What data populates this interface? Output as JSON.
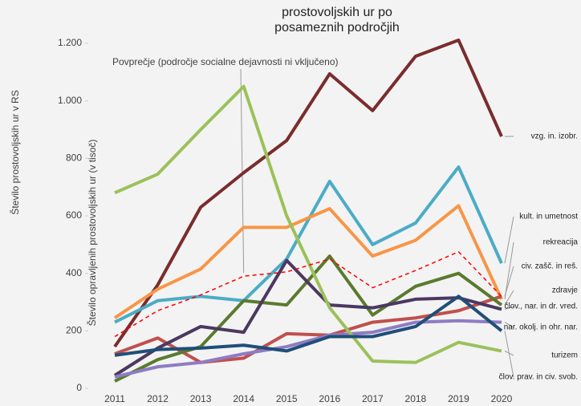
{
  "chart_data": {
    "type": "line",
    "title_lines": [
      "prostovoljskih ur po",
      "posameznih področjih"
    ],
    "outer_ylabel": "Število prostovoljskih ur v RS",
    "ylabel": "Število opravljenih prostovoljskih ur (v tisoč)",
    "annotation": "Povprečje (področje socialne dejavnosti ni vključeno)",
    "categories": [
      "2011",
      "2012",
      "2013",
      "2014",
      "2015",
      "2016",
      "2017",
      "2018",
      "2019",
      "2020"
    ],
    "ylim": [
      0,
      1200
    ],
    "yticks": [
      0,
      200,
      400,
      600,
      800,
      {
        "value": 1000,
        "label": "1.000"
      },
      {
        "value": 1200,
        "label": "1.200"
      }
    ],
    "series": [
      {
        "name": "vzg. in. izobr.",
        "color": "#7b2c2c",
        "values": [
          145,
          360,
          630,
          750,
          862,
          1094,
          966,
          1155,
          1211,
          876
        ]
      },
      {
        "name": "kult. in umetnost",
        "color": "#4bacc6",
        "values": [
          230,
          305,
          320,
          305,
          450,
          720,
          500,
          575,
          770,
          435
        ]
      },
      {
        "name": "rekreacija",
        "color": "#f79646",
        "values": [
          245,
          345,
          415,
          560,
          560,
          625,
          460,
          515,
          635,
          310
        ]
      },
      {
        "name": "civ. zašč. in reš.",
        "color": "#c0504d",
        "values": [
          120,
          175,
          90,
          105,
          190,
          185,
          230,
          245,
          270,
          320
        ]
      },
      {
        "name": "zdravje",
        "color": "#5a7a2e",
        "values": [
          25,
          100,
          145,
          305,
          290,
          460,
          255,
          355,
          400,
          290
        ]
      },
      {
        "name": "člov., nar. in dr. vred.",
        "color": "#4b3861",
        "values": [
          45,
          140,
          215,
          195,
          445,
          290,
          280,
          310,
          315,
          275
        ]
      },
      {
        "name": "nar. okolj. in ohr. nar.",
        "color": "#8e7cc3",
        "values": [
          40,
          75,
          90,
          120,
          145,
          185,
          195,
          230,
          235,
          230
        ]
      },
      {
        "name": "turizem",
        "color": "#9bc15a",
        "values": [
          680,
          745,
          900,
          1050,
          600,
          280,
          95,
          90,
          160,
          130
        ]
      },
      {
        "name": "člov. prav. in civ. svob.",
        "color": "#1f4e79",
        "values": [
          115,
          135,
          140,
          150,
          130,
          180,
          180,
          215,
          320,
          200
        ]
      },
      {
        "name": "Povprečje",
        "color": "#ff0000",
        "dashed": true,
        "values": [
          180,
          270,
          325,
          390,
          405,
          450,
          350,
          410,
          475,
          320
        ]
      }
    ]
  }
}
